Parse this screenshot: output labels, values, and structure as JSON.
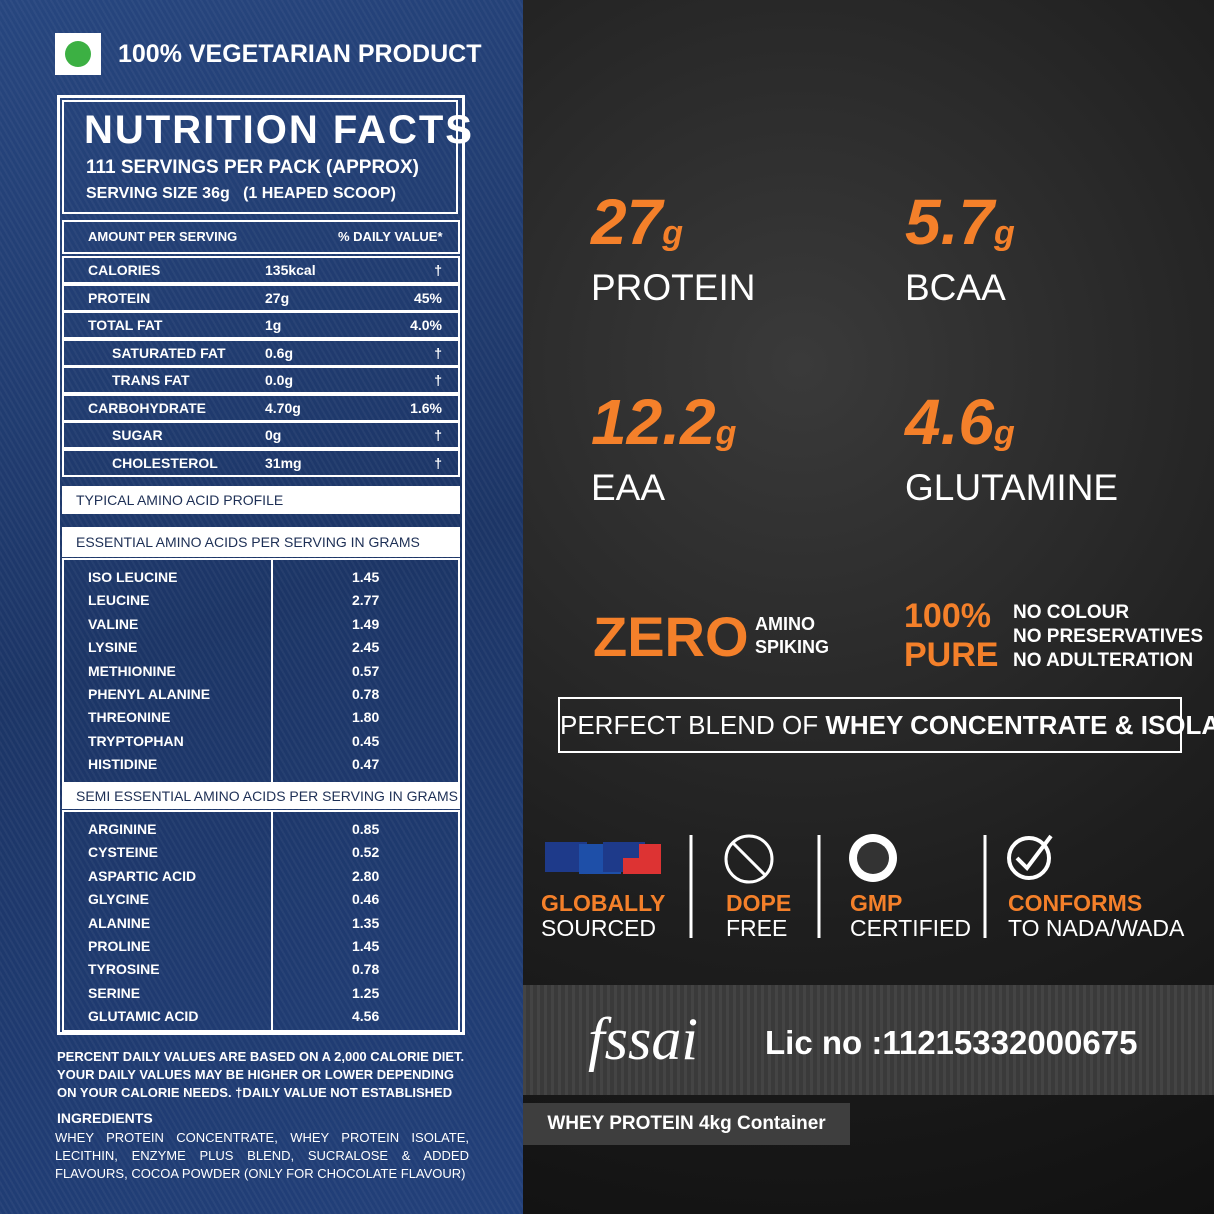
{
  "veg_label": "100% VEGETARIAN PRODUCT",
  "nutrition": {
    "title": "NUTRITION FACTS",
    "servings": "111 SERVINGS PER PACK (APPROX)",
    "serving_size": "SERVING SIZE 36g   (1 HEAPED SCOOP)",
    "header": [
      "AMOUNT PER SERVING",
      "% DAILY VALUE*"
    ],
    "rows": [
      [
        "CALORIES",
        "135kcal",
        "†"
      ],
      [
        "PROTEIN",
        "27g",
        "45%"
      ],
      [
        "TOTAL FAT",
        "1g",
        "4.0%"
      ],
      [
        "SATURATED FAT",
        "0.6g",
        "†"
      ],
      [
        "TRANS FAT",
        "0.0g",
        "†"
      ],
      [
        "CARBOHYDRATE",
        "4.70g",
        "1.6%"
      ],
      [
        "SUGAR",
        "0g",
        "†"
      ],
      [
        "CHOLESTEROL",
        "31mg",
        "†"
      ]
    ]
  },
  "amino_title": "TYPICAL AMINO ACID PROFILE",
  "essential": {
    "title": "ESSENTIAL AMINO ACIDS PER SERVING IN GRAMS",
    "rows": [
      [
        "ISO LEUCINE",
        "1.45"
      ],
      [
        "LEUCINE",
        "2.77"
      ],
      [
        "VALINE",
        "1.49"
      ],
      [
        "LYSINE",
        "2.45"
      ],
      [
        "METHIONINE",
        "0.57"
      ],
      [
        "PHENYL ALANINE",
        "0.78"
      ],
      [
        "THREONINE",
        "1.80"
      ],
      [
        "TRYPTOPHAN",
        "0.45"
      ],
      [
        "HISTIDINE",
        "0.47"
      ]
    ]
  },
  "semi_essential": {
    "title": "SEMI ESSENTIAL AMINO ACIDS PER SERVING IN GRAMS",
    "rows": [
      [
        "ARGININE",
        "0.85"
      ],
      [
        "CYSTEINE",
        "0.52"
      ],
      [
        "ASPARTIC ACID",
        "2.80"
      ],
      [
        "GLYCINE",
        "0.46"
      ],
      [
        "ALANINE",
        "1.35"
      ],
      [
        "PROLINE",
        "1.45"
      ],
      [
        "TYROSINE",
        "0.78"
      ],
      [
        "SERINE",
        "1.25"
      ],
      [
        "GLUTAMIC ACID",
        "4.56"
      ]
    ]
  },
  "footnote": "PERCENT DAILY VALUES ARE BASED ON A 2,000 CALORIE DIET. YOUR DAILY VALUES MAY BE HIGHER OR LOWER DEPENDING ON YOUR CALORIE NEEDS. †DAILY VALUE NOT ESTABLISHED",
  "ingredients": {
    "title": "INGREDIENTS",
    "text": "WHEY PROTEIN CONCENTRATE, WHEY PROTEIN ISOLATE, LECITHIN, ENZYME PLUS BLEND, SUCRALOSE & ADDED FLAVOURS, COCOA POWDER (ONLY FOR CHOCOLATE FLAVOUR)"
  },
  "stats": [
    {
      "value": "27",
      "unit": "g",
      "label": "PROTEIN"
    },
    {
      "value": "5.7",
      "unit": "g",
      "label": "BCAA"
    },
    {
      "value": "12.2",
      "unit": "g",
      "label": "EAA"
    },
    {
      "value": "4.6",
      "unit": "g",
      "label": "GLUTAMINE"
    }
  ],
  "zero": {
    "big": "ZERO",
    "small": [
      "AMINO",
      "SPIKING"
    ]
  },
  "pure": {
    "big": [
      "100%",
      "PURE"
    ],
    "items": [
      "NO COLOUR",
      "NO PRESERVATIVES",
      "NO ADULTERATION"
    ]
  },
  "blend": {
    "plain": "PERFECT BLEND OF ",
    "bold": "WHEY CONCENTRATE & ISOLATE"
  },
  "badges": [
    {
      "top": "GLOBALLY",
      "bottom": "SOURCED"
    },
    {
      "top": "DOPE",
      "bottom": "FREE"
    },
    {
      "top": "GMP",
      "bottom": "CERTIFIED"
    },
    {
      "top": "CONFORMS",
      "bottom": "TO NADA/WADA"
    }
  ],
  "fssai": {
    "logo": "fssai",
    "license": "Lic no :11215332000675"
  },
  "container": "WHEY PROTEIN 4kg Container"
}
